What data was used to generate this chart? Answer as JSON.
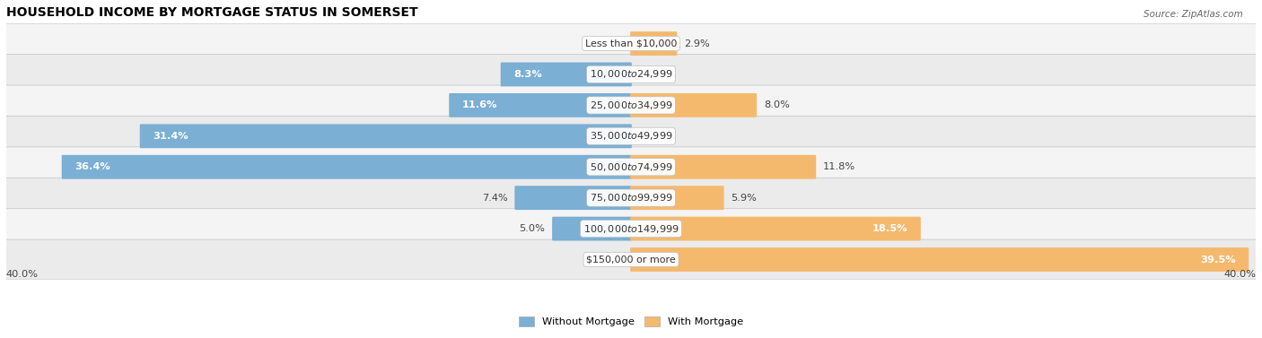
{
  "title": "HOUSEHOLD INCOME BY MORTGAGE STATUS IN SOMERSET",
  "source": "Source: ZipAtlas.com",
  "categories": [
    "Less than $10,000",
    "$10,000 to $24,999",
    "$25,000 to $34,999",
    "$35,000 to $49,999",
    "$50,000 to $74,999",
    "$75,000 to $99,999",
    "$100,000 to $149,999",
    "$150,000 or more"
  ],
  "without_mortgage": [
    0.0,
    8.3,
    11.6,
    31.4,
    36.4,
    7.4,
    5.0,
    0.0
  ],
  "with_mortgage": [
    2.9,
    0.0,
    8.0,
    0.0,
    11.8,
    5.9,
    18.5,
    39.5
  ],
  "color_without": "#7bafd4",
  "color_with": "#f5b96e",
  "axis_max": 40.0,
  "legend_labels": [
    "Without Mortgage",
    "With Mortgage"
  ],
  "title_fontsize": 10,
  "label_fontsize": 8.2,
  "tick_fontsize": 8.2,
  "bar_height": 0.68,
  "row_colors": [
    "#f4f4f4",
    "#ebebeb"
  ]
}
